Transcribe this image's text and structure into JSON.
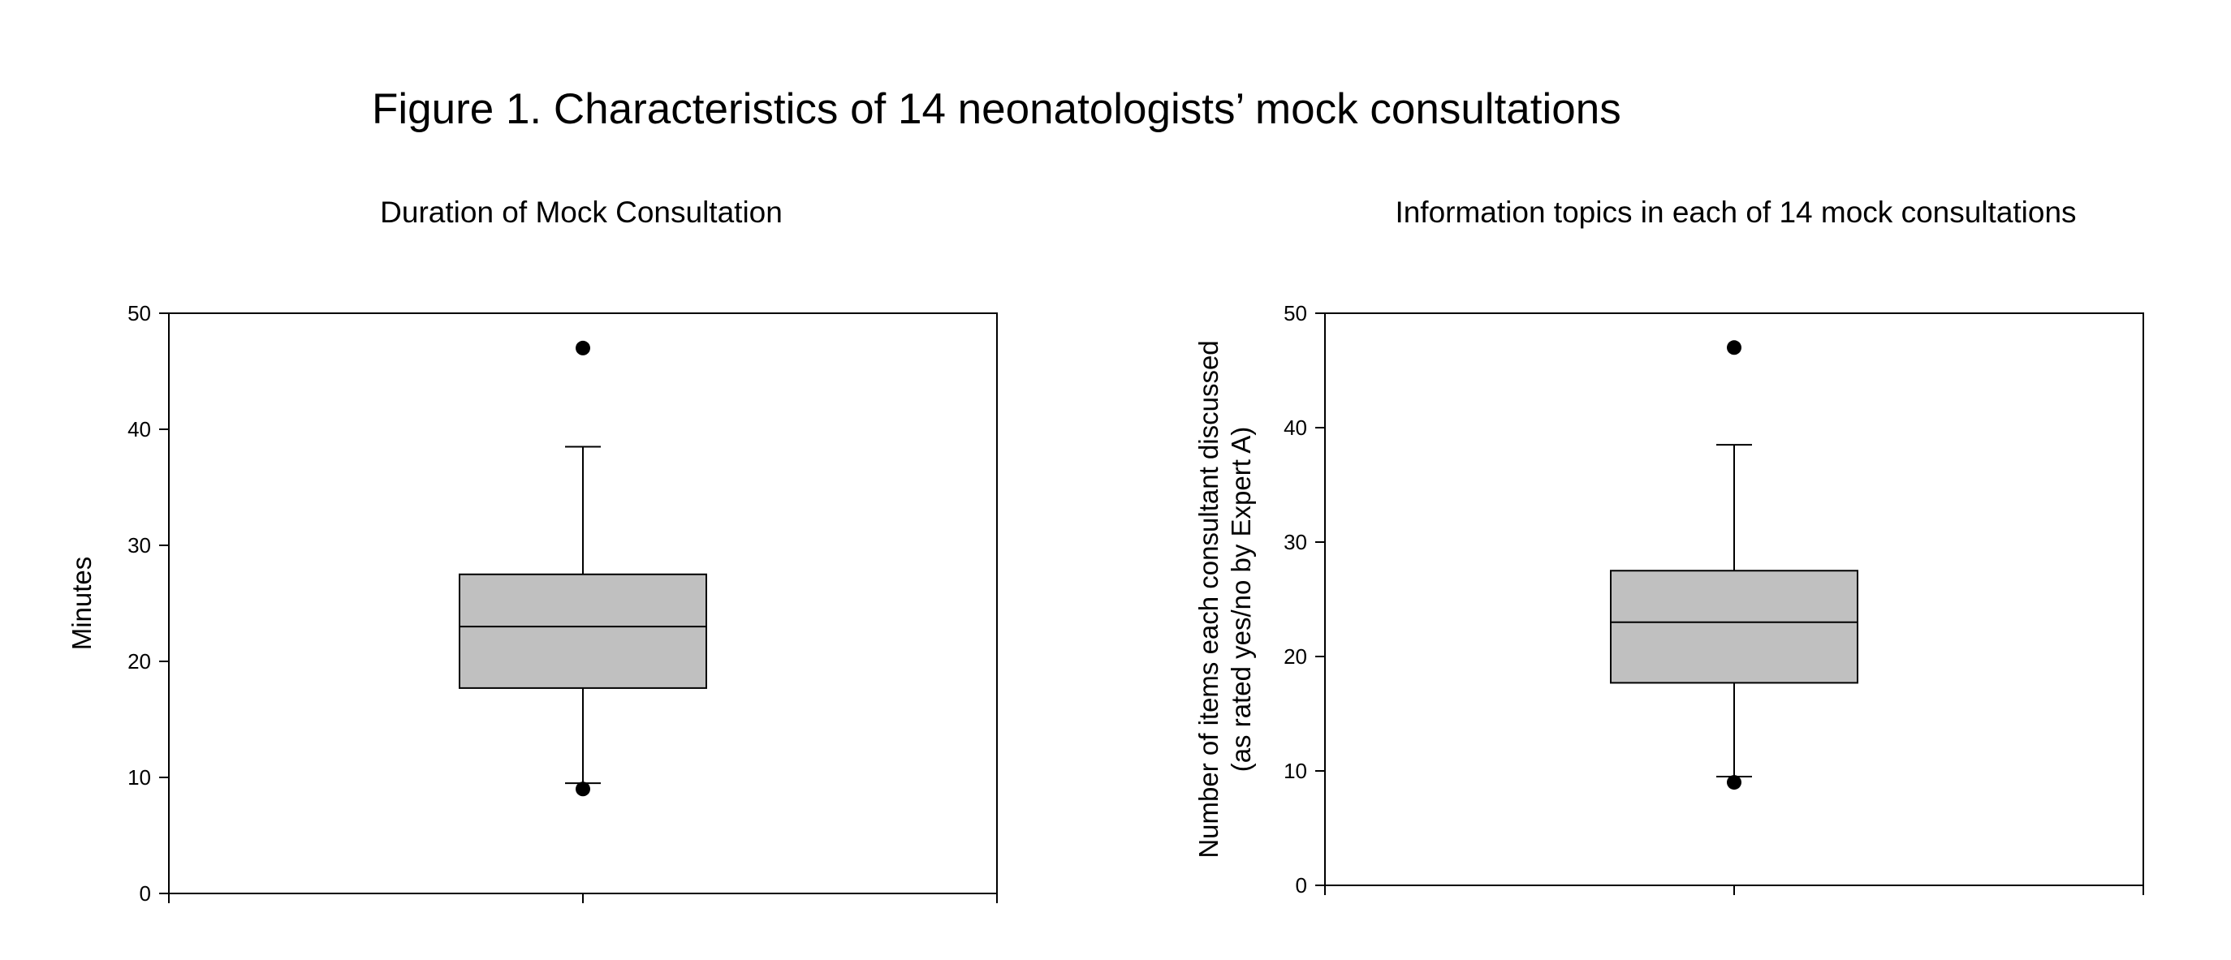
{
  "figure": {
    "title": "Figure 1. Characteristics of 14 neonatologists’ mock consultations"
  },
  "chart_data": [
    {
      "type": "box",
      "title": "Duration of Mock Consultation",
      "ylabel": [
        "Minutes"
      ],
      "ylim": [
        0,
        50
      ],
      "yticks": [
        0,
        10,
        20,
        30,
        40,
        50
      ],
      "grid": false,
      "legend": "none",
      "box": {
        "fill": "#c0c0c0",
        "whisker_low": 9.5,
        "q1": 17.7,
        "median": 23,
        "q3": 27.5,
        "whisker_high": 38.5,
        "outliers": [
          9,
          47
        ]
      }
    },
    {
      "type": "box",
      "title": "Information topics in each of 14 mock consultations",
      "ylabel": [
        "Number of items each consultant discussed",
        "(as rated yes/no by Expert A)"
      ],
      "ylim": [
        0,
        50
      ],
      "yticks": [
        0,
        10,
        20,
        30,
        40,
        50
      ],
      "grid": false,
      "legend": "none",
      "box": {
        "fill": "#c0c0c0",
        "whisker_low": 9.5,
        "q1": 17.7,
        "median": 23,
        "q3": 27.5,
        "whisker_high": 38.5,
        "outliers": [
          9,
          47
        ]
      }
    }
  ]
}
